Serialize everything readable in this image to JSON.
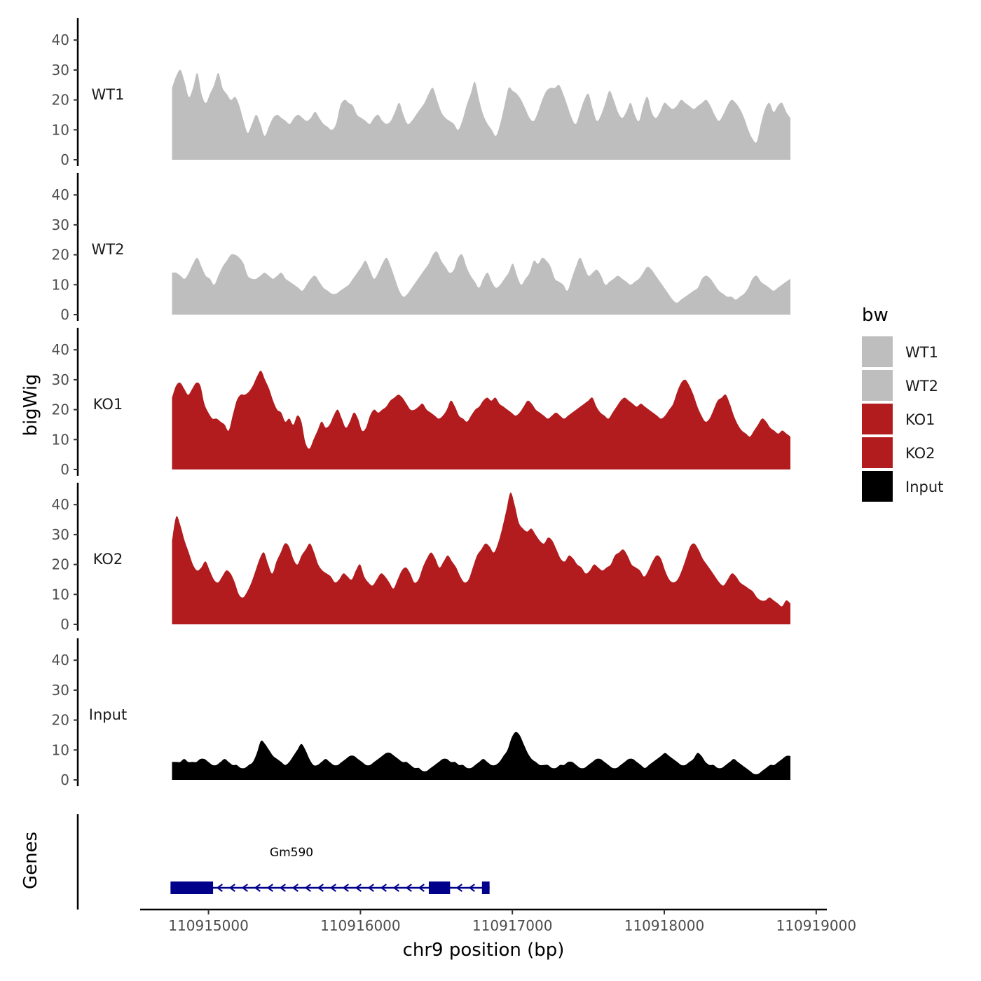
{
  "chart_data": {
    "type": "area",
    "ylabel": "bigWig",
    "xlabel": "chr9 position (bp)",
    "xlim": [
      110914550,
      110919070
    ],
    "ylim": [
      0,
      45
    ],
    "yticks": [
      0,
      10,
      20,
      30,
      40
    ],
    "xticks": [
      110915000,
      110916000,
      110917000,
      110918000,
      110919000
    ],
    "x_range": [
      110914760,
      110918830
    ],
    "legend": {
      "title": "bw",
      "position": "right",
      "entries": [
        {
          "name": "WT1",
          "color": "#bebebe"
        },
        {
          "name": "WT2",
          "color": "#bebebe"
        },
        {
          "name": "KO1",
          "color": "#b21c1e"
        },
        {
          "name": "KO2",
          "color": "#b21c1e"
        },
        {
          "name": "Input",
          "color": "#000000"
        }
      ]
    },
    "series": [
      {
        "name": "WT1",
        "color": "#bebebe",
        "values": [
          24,
          28,
          30,
          26,
          21,
          24,
          29,
          22,
          19,
          22,
          25,
          29,
          24,
          22,
          20,
          21,
          18,
          13,
          9,
          12,
          15,
          12,
          8,
          11,
          14,
          15,
          14,
          13,
          12,
          14,
          15,
          14,
          13,
          14,
          16,
          14,
          12,
          11,
          10,
          12,
          18,
          20,
          19,
          18,
          15,
          14,
          13,
          12,
          14,
          15,
          13,
          12,
          13,
          16,
          19,
          15,
          12,
          13,
          15,
          17,
          19,
          22,
          24,
          20,
          16,
          14,
          13,
          12,
          10,
          13,
          18,
          22,
          26,
          20,
          15,
          12,
          10,
          8,
          12,
          18,
          24,
          23,
          22,
          20,
          17,
          14,
          13,
          16,
          20,
          23,
          24,
          24,
          25,
          22,
          18,
          14,
          12,
          16,
          20,
          22,
          17,
          13,
          15,
          19,
          23,
          20,
          16,
          14,
          16,
          19,
          15,
          13,
          18,
          21,
          16,
          14,
          16,
          19,
          18,
          17,
          18,
          20,
          19,
          18,
          17,
          18,
          19,
          20,
          18,
          15,
          13,
          15,
          18,
          20,
          19,
          17,
          14,
          10,
          7,
          6,
          12,
          17,
          19,
          16,
          18,
          19,
          16,
          14
        ]
      },
      {
        "name": "WT2",
        "color": "#bebebe",
        "values": [
          14,
          14,
          13,
          12,
          14,
          17,
          19,
          16,
          13,
          12,
          10,
          13,
          16,
          18,
          20,
          20,
          19,
          17,
          13,
          12,
          12,
          13,
          14,
          13,
          12,
          13,
          14,
          12,
          11,
          10,
          9,
          8,
          10,
          12,
          13,
          11,
          9,
          8,
          7,
          7,
          8,
          9,
          10,
          12,
          14,
          16,
          18,
          15,
          12,
          14,
          17,
          19,
          16,
          12,
          8,
          6,
          7,
          9,
          11,
          13,
          15,
          17,
          20,
          21,
          18,
          16,
          14,
          15,
          19,
          20,
          16,
          13,
          11,
          9,
          12,
          14,
          11,
          9,
          10,
          12,
          14,
          17,
          13,
          10,
          12,
          14,
          18,
          17,
          19,
          18,
          16,
          12,
          11,
          10,
          8,
          12,
          16,
          19,
          16,
          13,
          14,
          15,
          13,
          10,
          11,
          12,
          13,
          12,
          11,
          10,
          11,
          12,
          14,
          16,
          15,
          13,
          11,
          9,
          7,
          5,
          4,
          5,
          6,
          7,
          8,
          9,
          12,
          13,
          12,
          10,
          8,
          7,
          6,
          6,
          5,
          6,
          7,
          9,
          12,
          13,
          11,
          10,
          9,
          8,
          9,
          10,
          11,
          12
        ]
      },
      {
        "name": "KO1",
        "color": "#b21c1e",
        "values": [
          24,
          28,
          29,
          27,
          25,
          27,
          29,
          28,
          22,
          19,
          17,
          17,
          16,
          15,
          13,
          18,
          23,
          25,
          25,
          26,
          28,
          31,
          33,
          30,
          27,
          23,
          20,
          19,
          16,
          17,
          15,
          18,
          16,
          9,
          7,
          10,
          13,
          16,
          14,
          15,
          18,
          20,
          17,
          14,
          16,
          19,
          17,
          13,
          14,
          18,
          20,
          19,
          20,
          21,
          23,
          24,
          25,
          24,
          22,
          20,
          20,
          21,
          22,
          20,
          19,
          18,
          17,
          18,
          20,
          23,
          21,
          18,
          17,
          16,
          18,
          20,
          21,
          23,
          24,
          23,
          24,
          22,
          21,
          20,
          19,
          18,
          19,
          21,
          23,
          22,
          20,
          19,
          18,
          17,
          18,
          19,
          18,
          17,
          18,
          19,
          20,
          21,
          22,
          23,
          24,
          21,
          19,
          18,
          17,
          19,
          21,
          23,
          24,
          23,
          22,
          21,
          22,
          21,
          20,
          19,
          18,
          17,
          18,
          20,
          22,
          26,
          29,
          30,
          28,
          25,
          21,
          18,
          16,
          17,
          20,
          23,
          24,
          25,
          22,
          18,
          15,
          13,
          12,
          11,
          13,
          15,
          17,
          16,
          14,
          13,
          12,
          13,
          12,
          11
        ]
      },
      {
        "name": "KO2",
        "color": "#b21c1e",
        "values": [
          28,
          36,
          33,
          28,
          24,
          20,
          18,
          19,
          21,
          18,
          15,
          14,
          16,
          18,
          17,
          14,
          10,
          9,
          11,
          14,
          18,
          22,
          24,
          20,
          17,
          21,
          24,
          27,
          26,
          22,
          20,
          23,
          25,
          27,
          24,
          20,
          18,
          17,
          16,
          14,
          15,
          17,
          16,
          15,
          18,
          20,
          16,
          14,
          13,
          15,
          17,
          16,
          14,
          12,
          15,
          18,
          19,
          17,
          14,
          15,
          19,
          22,
          24,
          22,
          19,
          21,
          23,
          21,
          19,
          16,
          14,
          15,
          19,
          23,
          25,
          27,
          26,
          24,
          27,
          32,
          38,
          44,
          40,
          34,
          32,
          31,
          32,
          30,
          28,
          27,
          29,
          28,
          25,
          22,
          21,
          23,
          22,
          20,
          19,
          17,
          18,
          20,
          19,
          18,
          19,
          20,
          23,
          24,
          25,
          23,
          20,
          19,
          18,
          16,
          18,
          21,
          23,
          22,
          18,
          15,
          14,
          15,
          18,
          22,
          26,
          27,
          25,
          22,
          20,
          18,
          16,
          14,
          13,
          15,
          17,
          16,
          14,
          13,
          12,
          11,
          9,
          8,
          8,
          9,
          8,
          7,
          6,
          8,
          7
        ]
      },
      {
        "name": "Input",
        "color": "#000000",
        "values": [
          6,
          6,
          6,
          7,
          6,
          6,
          6,
          7,
          7,
          6,
          5,
          5,
          6,
          7,
          6,
          5,
          5,
          4,
          4,
          5,
          6,
          9,
          13,
          12,
          10,
          8,
          7,
          6,
          5,
          6,
          8,
          10,
          12,
          10,
          7,
          5,
          5,
          6,
          7,
          6,
          5,
          5,
          6,
          7,
          8,
          8,
          7,
          6,
          5,
          5,
          6,
          7,
          8,
          9,
          9,
          8,
          7,
          6,
          6,
          5,
          4,
          4,
          3,
          3,
          4,
          5,
          6,
          7,
          7,
          6,
          6,
          5,
          5,
          4,
          4,
          5,
          6,
          7,
          6,
          5,
          5,
          6,
          8,
          10,
          14,
          16,
          15,
          12,
          9,
          7,
          6,
          5,
          5,
          5,
          4,
          4,
          5,
          5,
          6,
          6,
          5,
          4,
          4,
          5,
          6,
          7,
          7,
          6,
          5,
          4,
          4,
          5,
          6,
          7,
          7,
          6,
          5,
          4,
          5,
          6,
          7,
          8,
          9,
          8,
          7,
          6,
          5,
          5,
          6,
          7,
          9,
          8,
          6,
          5,
          5,
          4,
          4,
          5,
          6,
          7,
          6,
          5,
          4,
          3,
          2,
          2,
          3,
          4,
          5,
          5,
          6,
          7,
          8,
          8
        ]
      }
    ],
    "genes": [
      {
        "name": "Gm590",
        "strand": "-",
        "start": 110914750,
        "end": 110916850,
        "exons": [
          [
            110914750,
            110915030
          ],
          [
            110916450,
            110916590
          ],
          [
            110916800,
            110916850
          ]
        ]
      }
    ],
    "gene_track_label": "Genes"
  }
}
